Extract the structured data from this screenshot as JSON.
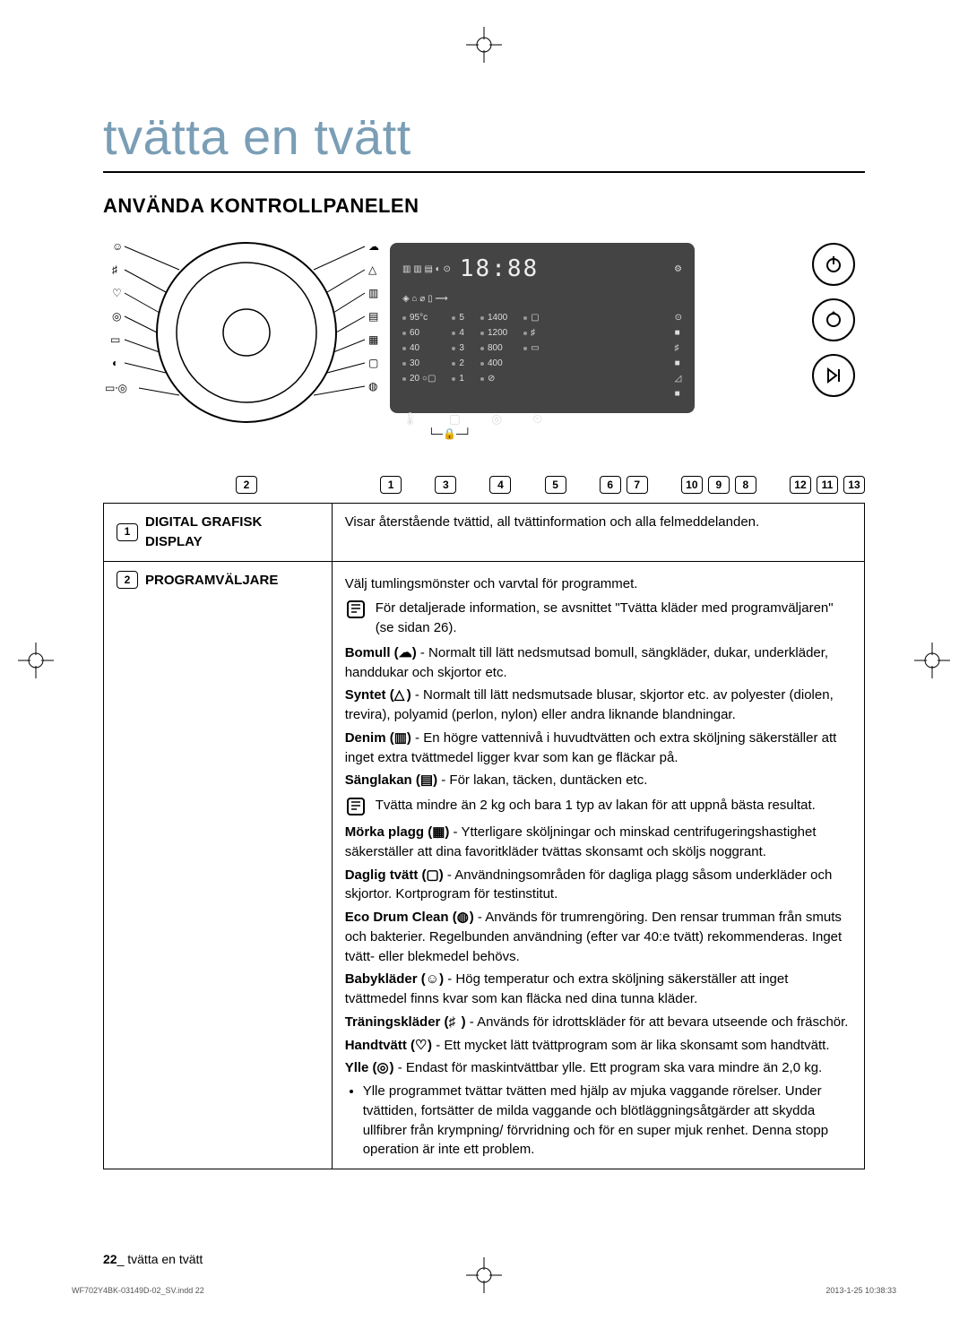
{
  "colors": {
    "accent": "#7a9eb5",
    "black": "#000000",
    "panel_bg": "#444444",
    "panel_fg": "#dddddd",
    "page_bg": "#ffffff"
  },
  "title": "tvätta en tvätt",
  "section": "ANVÄNDA KONTROLLPANELEN",
  "diagram": {
    "callout_numbers": [
      "2",
      "1",
      "3",
      "4",
      "5",
      "6",
      "7",
      "10",
      "9",
      "8",
      "12",
      "11",
      "13"
    ],
    "display": {
      "segment": "18:88",
      "temp": [
        "95°c",
        "60",
        "40",
        "30",
        "20 ○▢"
      ],
      "level": [
        "5",
        "4",
        "3",
        "2",
        "1"
      ],
      "spin": [
        "1400",
        "1200",
        "800",
        "400",
        "⊘"
      ]
    },
    "side_buttons": [
      "power-icon",
      "favorite-icon",
      "play-pause-icon"
    ]
  },
  "table": {
    "rows": [
      {
        "num": "1",
        "label": "DIGITAL GRAFISK DISPLAY",
        "body": {
          "plain": "Visar återstående tvättid, all tvättinformation och alla felmeddelanden."
        }
      },
      {
        "num": "2",
        "label": "PROGRAMVÄLJARE",
        "body": {
          "intro": "Välj tumlingsmönster och varvtal för programmet.",
          "note1": "För detaljerade information, se avsnittet \"Tvätta kläder med programväljaren\" (se sidan 26).",
          "items": [
            {
              "name": "Bomull",
              "sym": "☁",
              "text": " - Normalt till lätt nedsmutsad bomull, sängkläder, dukar, underkläder, handdukar och skjortor etc."
            },
            {
              "name": "Syntet",
              "sym": "△",
              "text": " - Normalt till lätt nedsmutsade blusar, skjortor etc. av polyester (diolen, trevira), polyamid (perlon, nylon) eller andra liknande blandningar."
            },
            {
              "name": "Denim",
              "sym": "▥",
              "text": " - En högre vattennivå i huvudtvätten och extra sköljning säkerställer att inget extra tvättmedel ligger kvar som kan ge fläckar på."
            },
            {
              "name": "Sänglakan",
              "sym": "▤",
              "text": " - För lakan, täcken, duntäcken etc."
            }
          ],
          "note2": "Tvätta mindre än 2 kg och bara 1 typ av lakan för att uppnå bästa resultat.",
          "items2": [
            {
              "name": "Mörka plagg",
              "sym": "▦",
              "text": " - Ytterligare sköljningar och minskad centrifugeringshastighet säkerställer att dina favoritkläder tvättas skonsamt och sköljs noggrant."
            },
            {
              "name": "Daglig tvätt",
              "sym": "▢",
              "text": " - Användningsområden för dagliga plagg såsom underkläder och skjortor.  Kortprogram för testinstitut."
            },
            {
              "name": "Eco Drum Clean",
              "sym": "◍",
              "text": " - Används för trumrengöring. Den rensar trumman från smuts och bakterier. Regelbunden användning (efter var 40:e tvätt) rekommenderas. Inget tvätt- eller blekmedel behövs."
            },
            {
              "name": "Babykläder",
              "sym": "☺",
              "text": " - Hög temperatur och extra sköljning säkerställer att inget tvättmedel finns kvar som kan fläcka ned dina tunna kläder."
            },
            {
              "name": "Träningskläder",
              "sym": "♯",
              "text": " - Används för idrottskläder för att bevara utseende och fräschör."
            },
            {
              "name": "Handtvätt",
              "sym": "♡",
              "text": " - Ett mycket lätt tvättprogram som är lika skonsamt som handtvätt."
            },
            {
              "name": "Ylle",
              "sym": "◎",
              "text": " - Endast för maskintvättbar ylle.  Ett program ska vara mindre än 2,0 kg."
            }
          ],
          "bullet": "Ylle programmet tvättar tvätten med hjälp av mjuka vaggande rörelser. Under tvättiden, fortsätter de milda vaggande och blötläggningsåtgärder att skydda ullfibrer från krympning/ förvridning och för en super mjuk renhet. Denna stopp operation är inte ett problem."
        }
      }
    ]
  },
  "footer": {
    "page_num": "22",
    "page_label": "_ tvätta en tvätt",
    "file": "WF702Y4BK-03149D-02_SV.indd   22",
    "timestamp": "2013-1-25   10:38:33"
  }
}
